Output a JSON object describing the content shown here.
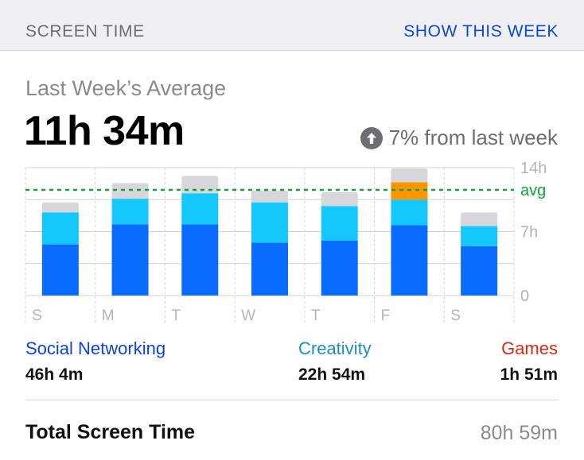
{
  "header": {
    "title": "SCREEN TIME",
    "action_label": "SHOW THIS WEEK"
  },
  "summary": {
    "label": "Last Week’s Average",
    "value": "11h 34m",
    "change_text": "7% from last week",
    "change_icon": "arrow-up-circle-icon"
  },
  "chart_data": {
    "type": "bar",
    "stacked": true,
    "categories": [
      "S",
      "M",
      "T",
      "W",
      "T",
      "F",
      "S"
    ],
    "series": [
      {
        "key": "social",
        "values": [
          5.6,
          7.8,
          7.8,
          5.8,
          6.0,
          7.7,
          5.4
        ]
      },
      {
        "key": "creativity",
        "values": [
          3.5,
          2.8,
          3.4,
          4.4,
          3.8,
          2.8,
          2.2
        ]
      },
      {
        "key": "games",
        "values": [
          0,
          0,
          0,
          0,
          0,
          1.9,
          0
        ]
      },
      {
        "key": "other",
        "values": [
          1.1,
          1.7,
          1.9,
          1.3,
          1.5,
          1.5,
          1.5
        ]
      }
    ],
    "y_ticks": [
      {
        "value": 14,
        "label": "14h"
      },
      {
        "value": 7,
        "label": "7h"
      },
      {
        "value": 0,
        "label": "0"
      }
    ],
    "ylim": [
      0,
      14
    ],
    "average": 11.57,
    "average_label": "avg",
    "grid": true,
    "colors": {
      "social": "#0a6cff",
      "creativity": "#14c8fd",
      "games": "#ff9500",
      "other": "#d6d6db",
      "average": "#11a33a",
      "grid": "#d3d3d7",
      "tick": "#b4b4b8"
    }
  },
  "legend": [
    {
      "name": "Social Networking",
      "value": "46h 4m",
      "color": "#0d43d4"
    },
    {
      "name": "Creativity",
      "value": "22h 54m",
      "color": "#1b8ec0"
    },
    {
      "name": "Games",
      "value": "1h 51m",
      "color": "#d42b12"
    }
  ],
  "total": {
    "label": "Total Screen Time",
    "value": "80h 59m"
  }
}
